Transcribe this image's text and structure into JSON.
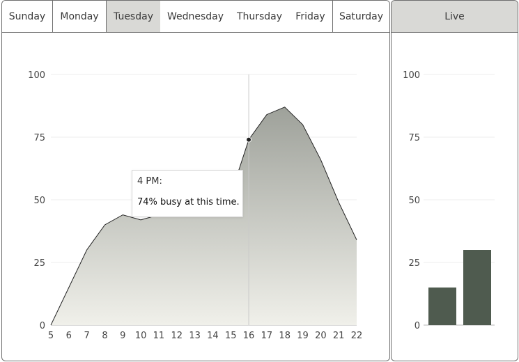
{
  "tabs": [
    "Sunday",
    "Monday",
    "Tuesday",
    "Wednesday",
    "Thursday",
    "Friday",
    "Saturday"
  ],
  "selected_tab": "Tuesday",
  "live_tab": "Live",
  "tooltip": {
    "time": "4 PM:",
    "message": "74% busy at this time."
  },
  "colors": {
    "area_top": "#9ea19a",
    "area_bottom": "#f0f0ea",
    "bar": "#4f5b4f",
    "line": "#222222"
  },
  "chart_data": [
    {
      "type": "area",
      "x": [
        5,
        6,
        7,
        8,
        9,
        10,
        11,
        12,
        13,
        14,
        15,
        16,
        17,
        18,
        19,
        20,
        21,
        22
      ],
      "values": [
        0,
        15,
        30,
        40,
        44,
        42,
        44,
        44,
        44,
        44,
        52,
        74,
        84,
        87,
        80,
        66,
        49,
        34
      ],
      "xlim": [
        5,
        22
      ],
      "ylim": [
        0,
        100
      ],
      "yticks": [
        0,
        25,
        50,
        75,
        100
      ],
      "highlight_x": 16,
      "grid": true
    },
    {
      "type": "bar",
      "values": [
        15,
        30
      ],
      "ylim": [
        0,
        100
      ],
      "yticks": [
        0,
        25,
        50,
        75,
        100
      ],
      "grid": true
    }
  ]
}
